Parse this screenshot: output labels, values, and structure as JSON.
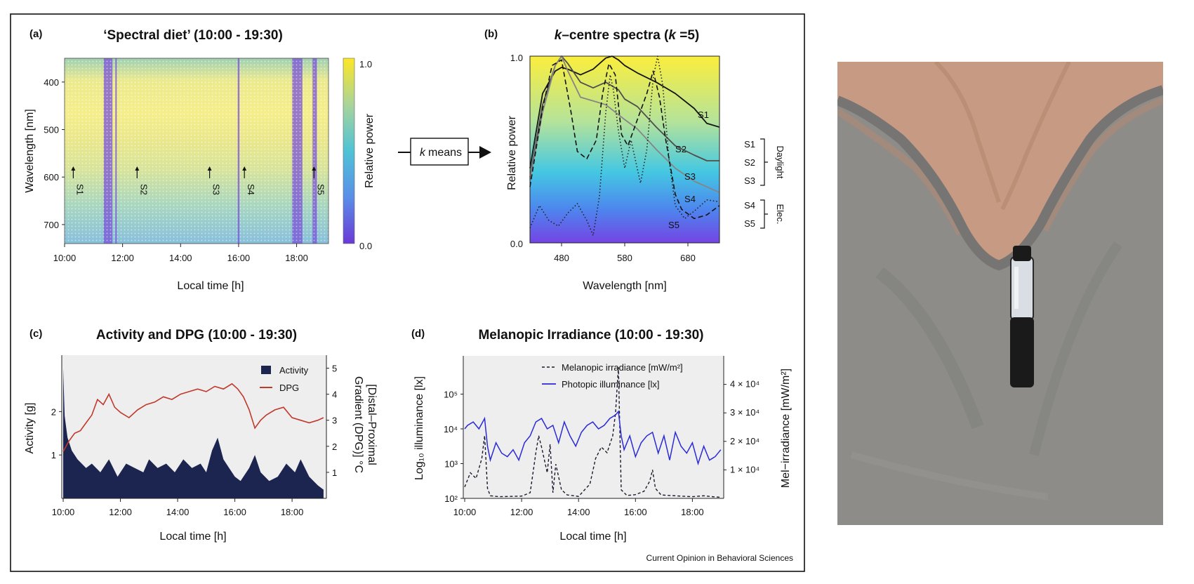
{
  "figure": {
    "credit": "Current Opinion in Behavioral Sciences",
    "kmeans_label": "means",
    "kmeans_k": "k"
  },
  "photo": {
    "subject": "person wearing a grey t-shirt with a clip-on spectral light logger",
    "shirt_color": "#8d8c89",
    "skin_color": "#c79a83",
    "device_cap_color": "#d8dee3",
    "device_body_color": "#1a1a1a"
  },
  "chart_data": [
    {
      "panel": "(a)",
      "type": "heatmap",
      "title": "‘Spectral diet’ (10:00 - 19:30)",
      "xlabel": "Local time [h]",
      "ylabel": "Wavelength [nm]",
      "colorbar_label": "Relative power",
      "colorbar_ticks": [
        "1.0",
        "0.0"
      ],
      "x_ticks": [
        "10:00",
        "12:00",
        "14:00",
        "16:00",
        "18:00"
      ],
      "x_tick_hours": [
        10,
        12,
        14,
        16,
        18
      ],
      "xlim": [
        10,
        19.1
      ],
      "y_ticks": [
        "400",
        "500",
        "600",
        "700"
      ],
      "y_tick_values": [
        400,
        500,
        600,
        700
      ],
      "ylim": [
        350,
        740
      ],
      "low_power_bands": [
        [
          11.35,
          11.65
        ],
        [
          11.75,
          11.8
        ],
        [
          15.97,
          16.03
        ],
        [
          17.85,
          18.2
        ],
        [
          18.55,
          18.7
        ]
      ],
      "sample_markers": [
        {
          "label": "S1",
          "hour": 10.3
        },
        {
          "label": "S2",
          "hour": 12.5
        },
        {
          "label": "S3",
          "hour": 15.0
        },
        {
          "label": "S4",
          "hour": 16.2
        },
        {
          "label": "S5",
          "hour": 18.6
        }
      ]
    },
    {
      "panel": "(b)",
      "type": "line",
      "title_prefix": "k",
      "title_mid": "–centre spectra (",
      "title_k": "k",
      "title_suffix": " =5)",
      "xlabel": "Wavelength [nm]",
      "ylabel": "Relative power",
      "x_ticks": [
        "480",
        "580",
        "680"
      ],
      "x_tick_values": [
        480,
        580,
        680
      ],
      "xlim": [
        430,
        730
      ],
      "y_ticks": [
        "1.0",
        "0.0"
      ],
      "ylim": [
        0,
        1
      ],
      "groups": [
        {
          "label": "Daylight",
          "members": [
            "S1",
            "S2",
            "S3"
          ]
        },
        {
          "label": "Elec.",
          "members": [
            "S4",
            "S5"
          ]
        }
      ],
      "series": [
        {
          "name": "S1",
          "style": "solid",
          "color": "#151515",
          "x": [
            430,
            450,
            470,
            480,
            490,
            510,
            530,
            550,
            560,
            570,
            580,
            600,
            630,
            660,
            690,
            710,
            730
          ],
          "y": [
            0.4,
            0.8,
            0.92,
            0.94,
            0.93,
            0.9,
            0.93,
            0.99,
            1.0,
            0.98,
            0.95,
            0.91,
            0.86,
            0.8,
            0.72,
            0.64,
            0.62
          ]
        },
        {
          "name": "S2",
          "style": "solid",
          "color": "#4e4e4e",
          "x": [
            430,
            450,
            470,
            480,
            490,
            510,
            530,
            550,
            570,
            580,
            600,
            630,
            660,
            690,
            710,
            730
          ],
          "y": [
            0.35,
            0.74,
            0.95,
            1.0,
            0.96,
            0.86,
            0.83,
            0.86,
            0.82,
            0.77,
            0.73,
            0.62,
            0.52,
            0.47,
            0.44,
            0.44
          ]
        },
        {
          "name": "S3",
          "style": "solid",
          "color": "#858585",
          "x": [
            430,
            450,
            470,
            480,
            490,
            510,
            530,
            550,
            580,
            600,
            630,
            660,
            690,
            710,
            730
          ],
          "y": [
            0.34,
            0.7,
            0.95,
            1.0,
            0.92,
            0.78,
            0.76,
            0.74,
            0.66,
            0.61,
            0.5,
            0.4,
            0.33,
            0.3,
            0.27
          ]
        },
        {
          "name": "S4",
          "style": "dashed",
          "color": "#111111",
          "x": [
            430,
            450,
            465,
            480,
            495,
            505,
            520,
            535,
            545,
            555,
            565,
            575,
            585,
            600,
            615,
            625,
            635,
            645,
            660,
            670,
            690,
            710,
            730
          ],
          "y": [
            0.3,
            0.72,
            0.95,
            0.98,
            0.7,
            0.49,
            0.45,
            0.55,
            0.8,
            0.96,
            0.9,
            0.58,
            0.52,
            0.66,
            0.8,
            0.92,
            0.78,
            0.55,
            0.26,
            0.18,
            0.13,
            0.15,
            0.2
          ]
        },
        {
          "name": "S5",
          "style": "dotted",
          "color": "#222222",
          "x": [
            430,
            445,
            460,
            475,
            490,
            505,
            520,
            530,
            540,
            550,
            557,
            562,
            570,
            580,
            590,
            605,
            615,
            625,
            632,
            640,
            650,
            660,
            675,
            690,
            710,
            730
          ],
          "y": [
            0.08,
            0.2,
            0.12,
            0.09,
            0.16,
            0.21,
            0.12,
            0.04,
            0.25,
            0.7,
            0.9,
            0.82,
            0.6,
            0.4,
            0.55,
            0.32,
            0.5,
            0.88,
            1.0,
            0.85,
            0.45,
            0.2,
            0.13,
            0.17,
            0.23,
            0.22
          ]
        }
      ]
    },
    {
      "panel": "(c)",
      "type": "area",
      "title": "Activity and DPG (10:00 - 19:30)",
      "xlabel": "Local time [h]",
      "ylabel_left": "Activity [g]",
      "ylabel_right_line1": "[Distal–Proximal",
      "ylabel_right_line2": "Gradient (DPG)] °C",
      "x_ticks": [
        "10:00",
        "12:00",
        "14:00",
        "16:00",
        "18:00"
      ],
      "x_tick_hours": [
        10,
        12,
        14,
        16,
        18
      ],
      "xlim": [
        9.95,
        19.2
      ],
      "y_left_ticks": [
        "1",
        "2"
      ],
      "y_left_values": [
        1,
        2
      ],
      "ylim_left": [
        0,
        3.3
      ],
      "y_right_ticks": [
        "1",
        "2",
        "3",
        "4",
        "5"
      ],
      "y_right_values": [
        1,
        2,
        3,
        4,
        5
      ],
      "ylim_right": [
        0,
        5.5
      ],
      "legend": [
        "Activity",
        "DPG"
      ],
      "series": [
        {
          "name": "Activity",
          "color": "#1c2450",
          "x": [
            10.0,
            10.05,
            10.15,
            10.3,
            10.5,
            10.8,
            11.0,
            11.3,
            11.6,
            11.9,
            12.2,
            12.5,
            12.8,
            13.0,
            13.3,
            13.6,
            13.9,
            14.2,
            14.5,
            14.8,
            15.0,
            15.2,
            15.4,
            15.6,
            15.8,
            16.0,
            16.2,
            16.5,
            16.7,
            16.9,
            17.2,
            17.5,
            17.8,
            18.1,
            18.3,
            18.6,
            18.9,
            19.1
          ],
          "y": [
            3.0,
            1.9,
            1.4,
            1.1,
            0.9,
            0.7,
            0.8,
            0.6,
            0.9,
            0.5,
            0.8,
            0.7,
            0.6,
            0.9,
            0.7,
            0.8,
            0.6,
            0.9,
            0.7,
            0.8,
            0.6,
            1.1,
            1.4,
            0.9,
            0.7,
            0.5,
            0.4,
            0.7,
            1.0,
            0.6,
            0.4,
            0.5,
            0.8,
            0.6,
            0.9,
            0.5,
            0.3,
            0.2
          ]
        },
        {
          "name": "DPG",
          "color": "#c0392b",
          "x": [
            10.0,
            10.2,
            10.4,
            10.6,
            10.8,
            11.0,
            11.2,
            11.4,
            11.6,
            11.8,
            12.0,
            12.3,
            12.6,
            12.9,
            13.2,
            13.5,
            13.8,
            14.1,
            14.4,
            14.7,
            15.0,
            15.3,
            15.6,
            15.9,
            16.1,
            16.3,
            16.5,
            16.7,
            16.9,
            17.1,
            17.4,
            17.7,
            18.0,
            18.3,
            18.6,
            18.9,
            19.1
          ],
          "y": [
            1.8,
            2.2,
            2.5,
            2.6,
            2.9,
            3.2,
            3.8,
            3.6,
            4.0,
            3.5,
            3.3,
            3.1,
            3.4,
            3.6,
            3.7,
            3.9,
            3.8,
            4.0,
            4.1,
            4.2,
            4.1,
            4.3,
            4.2,
            4.4,
            4.2,
            3.9,
            3.4,
            2.7,
            3.0,
            3.2,
            3.4,
            3.5,
            3.1,
            3.0,
            2.9,
            3.0,
            3.1
          ]
        }
      ]
    },
    {
      "panel": "(d)",
      "type": "line",
      "title": "Melanopic Irradiance (10:00 - 19:30)",
      "xlabel": "Local time [h]",
      "ylabel_left": "Log₁₀ illuminance [lx]",
      "ylabel_right": "Mel−irradiance [mW/m²]",
      "x_ticks": [
        "10:00",
        "12:00",
        "14:00",
        "16:00",
        "18:00"
      ],
      "x_tick_hours": [
        10,
        12,
        14,
        16,
        18
      ],
      "xlim": [
        9.95,
        19.1
      ],
      "y_left_ticks": [
        "10²",
        "10³",
        "10⁴",
        "10⁵"
      ],
      "y_left_log_values": [
        2,
        3,
        4,
        5
      ],
      "ylim_left_log": [
        2,
        6.1
      ],
      "y_right_ticks": [
        "1 × 10⁴",
        "2 × 10⁴",
        "3 × 10⁴",
        "4 × 10⁴"
      ],
      "y_right_values": [
        10000,
        20000,
        30000,
        40000
      ],
      "ylim_right": [
        0,
        50000
      ],
      "legend": [
        "Melanopic irradiance [mW/m²]",
        "Photopic illuminance [lx]"
      ],
      "series": [
        {
          "name": "Melanopic irradiance [mW/m²]",
          "style": "dashed",
          "color": "#1a1a2e",
          "unit_axis": "right",
          "x": [
            10.0,
            10.2,
            10.4,
            10.6,
            10.7,
            10.8,
            10.9,
            11.2,
            11.6,
            12.0,
            12.3,
            12.5,
            12.6,
            12.7,
            12.9,
            13.0,
            13.1,
            13.2,
            13.4,
            13.6,
            14.0,
            14.4,
            14.6,
            14.8,
            15.0,
            15.2,
            15.3,
            15.4,
            15.5,
            15.7,
            16.0,
            16.3,
            16.5,
            16.6,
            16.7,
            16.9,
            17.2,
            17.6,
            18.0,
            18.4,
            18.8,
            19.0
          ],
          "y": [
            4000,
            9000,
            7000,
            14000,
            22000,
            3500,
            900,
            600,
            700,
            800,
            2000,
            16000,
            22000,
            18000,
            9000,
            19000,
            2000,
            12000,
            3000,
            1200,
            700,
            5000,
            14000,
            18000,
            16000,
            22000,
            30000,
            46000,
            3000,
            1000,
            1300,
            2500,
            6000,
            10000,
            3500,
            1200,
            1000,
            800,
            600,
            900,
            500,
            400
          ]
        },
        {
          "name": "Photopic illuminance [lx]",
          "style": "solid",
          "color": "#2a2ad8",
          "unit_axis": "left",
          "x": [
            10.0,
            10.1,
            10.3,
            10.5,
            10.7,
            10.8,
            10.9,
            11.1,
            11.3,
            11.5,
            11.7,
            11.9,
            12.1,
            12.3,
            12.5,
            12.7,
            12.9,
            13.1,
            13.3,
            13.5,
            13.7,
            13.9,
            14.1,
            14.3,
            14.5,
            14.7,
            14.9,
            15.1,
            15.3,
            15.4,
            15.5,
            15.6,
            15.8,
            16.0,
            16.2,
            16.4,
            16.6,
            16.8,
            17.0,
            17.2,
            17.4,
            17.6,
            17.8,
            18.0,
            18.2,
            18.4,
            18.6,
            18.8,
            19.0
          ],
          "y_log10": [
            4.0,
            4.1,
            4.2,
            4.0,
            4.3,
            3.5,
            3.1,
            3.6,
            3.3,
            3.2,
            3.4,
            3.1,
            3.6,
            3.8,
            4.2,
            4.3,
            4.0,
            4.1,
            3.6,
            4.2,
            3.8,
            3.5,
            3.9,
            4.1,
            4.2,
            4.0,
            4.1,
            4.3,
            4.4,
            4.5,
            3.8,
            3.4,
            3.8,
            3.2,
            3.6,
            3.8,
            3.9,
            3.3,
            3.8,
            3.1,
            3.9,
            3.5,
            3.3,
            3.6,
            3.0,
            3.5,
            3.1,
            3.2,
            3.4
          ]
        }
      ]
    }
  ]
}
